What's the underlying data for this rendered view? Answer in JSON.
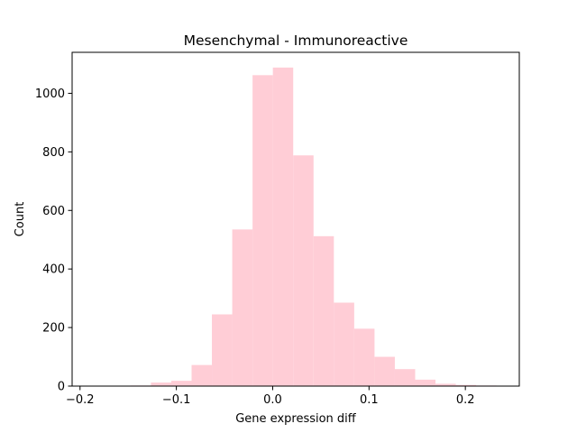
{
  "chart_data": {
    "type": "bar",
    "title": "Mesenchymal - Immunoreactive",
    "xlabel": "Gene expression diff",
    "ylabel": "Count",
    "xlim": [
      -0.2082,
      0.256
    ],
    "ylim": [
      0,
      1140
    ],
    "xticks": [
      -0.2,
      -0.1,
      0.0,
      0.1,
      0.2
    ],
    "xtick_labels": [
      "−0.2",
      "−0.1",
      "0.0",
      "0.1",
      "0.2"
    ],
    "yticks": [
      0,
      200,
      400,
      600,
      800,
      1000
    ],
    "ytick_labels": [
      "0",
      "200",
      "400",
      "600",
      "800",
      "1000"
    ],
    "bar_color": "#ffcdd6",
    "grid": false,
    "bins": [
      {
        "x0": -0.1686,
        "x1": -0.1475,
        "count": 1
      },
      {
        "x0": -0.1475,
        "x1": -0.1264,
        "count": 2
      },
      {
        "x0": -0.1264,
        "x1": -0.1053,
        "count": 12
      },
      {
        "x0": -0.1053,
        "x1": -0.0842,
        "count": 18
      },
      {
        "x0": -0.0842,
        "x1": -0.0631,
        "count": 72
      },
      {
        "x0": -0.0631,
        "x1": -0.042,
        "count": 245
      },
      {
        "x0": -0.042,
        "x1": -0.0209,
        "count": 535
      },
      {
        "x0": -0.0209,
        "x1": 0.0002,
        "count": 1062
      },
      {
        "x0": 0.0002,
        "x1": 0.0213,
        "count": 1088
      },
      {
        "x0": 0.0213,
        "x1": 0.0424,
        "count": 788
      },
      {
        "x0": 0.0424,
        "x1": 0.0635,
        "count": 512
      },
      {
        "x0": 0.0635,
        "x1": 0.0846,
        "count": 285
      },
      {
        "x0": 0.0846,
        "x1": 0.1057,
        "count": 196
      },
      {
        "x0": 0.1057,
        "x1": 0.1268,
        "count": 100
      },
      {
        "x0": 0.1268,
        "x1": 0.1479,
        "count": 58
      },
      {
        "x0": 0.1479,
        "x1": 0.169,
        "count": 22
      },
      {
        "x0": 0.169,
        "x1": 0.1901,
        "count": 8
      },
      {
        "x0": 0.1901,
        "x1": 0.2112,
        "count": 4
      },
      {
        "x0": 0.2112,
        "x1": 0.2323,
        "count": 2
      }
    ]
  }
}
